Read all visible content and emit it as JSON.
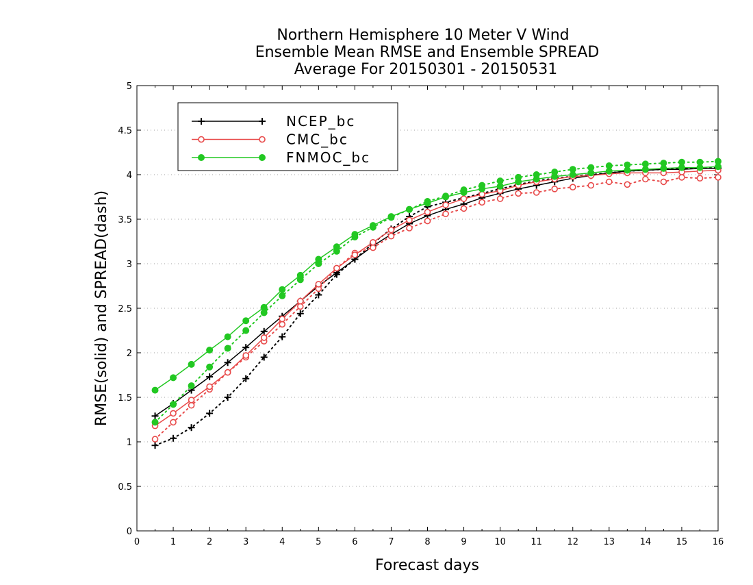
{
  "chart_data": {
    "type": "line",
    "title": [
      "Northern Hemisphere 10 Meter V Wind",
      "Ensemble Mean RMSE and Ensemble SPREAD",
      "Average For 20150301 - 20150531"
    ],
    "xlabel": "Forecast days",
    "ylabel": "RMSE(solid) and SPREAD(dash)",
    "xlim": [
      0,
      16
    ],
    "ylim": [
      0,
      5
    ],
    "xticks": [
      0,
      1,
      2,
      3,
      4,
      5,
      6,
      7,
      8,
      9,
      10,
      11,
      12,
      13,
      14,
      15,
      16
    ],
    "yticks": [
      0,
      0.5,
      1,
      1.5,
      2,
      2.5,
      3,
      3.5,
      4,
      4.5,
      5
    ],
    "grid": "y dotted",
    "legend_position": "top-left",
    "x": [
      0.5,
      1,
      1.5,
      2,
      2.5,
      3,
      3.5,
      4,
      4.5,
      5,
      5.5,
      6,
      6.5,
      7,
      7.5,
      8,
      8.5,
      9,
      9.5,
      10,
      10.5,
      11,
      11.5,
      12,
      12.5,
      13,
      13.5,
      14,
      14.5,
      15,
      15.5,
      16
    ],
    "series": [
      {
        "name": "NCEP_bc",
        "color": "#000000",
        "marker": "plus",
        "rmse": [
          1.29,
          1.43,
          1.58,
          1.73,
          1.89,
          2.06,
          2.24,
          2.41,
          2.58,
          2.75,
          2.9,
          3.05,
          3.2,
          3.33,
          3.45,
          3.54,
          3.61,
          3.67,
          3.74,
          3.79,
          3.84,
          3.88,
          3.92,
          3.96,
          3.99,
          4.02,
          4.04,
          4.05,
          4.06,
          4.06,
          4.07,
          4.07
        ],
        "spread": [
          0.96,
          1.04,
          1.16,
          1.32,
          1.5,
          1.71,
          1.95,
          2.18,
          2.44,
          2.65,
          2.88,
          3.05,
          3.23,
          3.39,
          3.53,
          3.64,
          3.69,
          3.74,
          3.79,
          3.84,
          3.89,
          3.93,
          3.96,
          3.98,
          4.0,
          4.02,
          4.04,
          4.05,
          4.06,
          4.07,
          4.07,
          4.08
        ]
      },
      {
        "name": "CMC_bc",
        "color": "#e84a4a",
        "marker": "open-circle",
        "rmse": [
          1.18,
          1.32,
          1.47,
          1.62,
          1.78,
          1.97,
          2.17,
          2.38,
          2.58,
          2.77,
          2.95,
          3.1,
          3.24,
          3.38,
          3.49,
          3.58,
          3.66,
          3.73,
          3.78,
          3.82,
          3.88,
          3.92,
          3.95,
          3.98,
          3.99,
          4.01,
          4.02,
          4.02,
          4.02,
          4.03,
          4.04,
          4.05
        ],
        "spread": [
          1.03,
          1.22,
          1.41,
          1.59,
          1.78,
          1.95,
          2.13,
          2.32,
          2.52,
          2.72,
          2.95,
          3.12,
          3.18,
          3.31,
          3.4,
          3.48,
          3.56,
          3.62,
          3.69,
          3.73,
          3.79,
          3.8,
          3.84,
          3.86,
          3.88,
          3.92,
          3.89,
          3.95,
          3.92,
          3.97,
          3.96,
          3.97
        ]
      },
      {
        "name": "FNMOC_bc",
        "color": "#22c822",
        "marker": "filled-circle",
        "rmse": [
          1.58,
          1.72,
          1.87,
          2.03,
          2.18,
          2.36,
          2.51,
          2.71,
          2.87,
          3.05,
          3.19,
          3.33,
          3.43,
          3.53,
          3.61,
          3.68,
          3.75,
          3.8,
          3.84,
          3.87,
          3.92,
          3.95,
          3.98,
          4.0,
          4.02,
          4.04,
          4.05,
          4.06,
          4.07,
          4.08,
          4.08,
          4.09
        ],
        "spread": [
          1.22,
          1.42,
          1.63,
          1.84,
          2.05,
          2.25,
          2.45,
          2.64,
          2.82,
          3.0,
          3.14,
          3.3,
          3.41,
          3.52,
          3.61,
          3.7,
          3.76,
          3.83,
          3.88,
          3.93,
          3.97,
          4.0,
          4.03,
          4.06,
          4.08,
          4.1,
          4.11,
          4.12,
          4.13,
          4.14,
          4.14,
          4.15
        ]
      }
    ]
  }
}
